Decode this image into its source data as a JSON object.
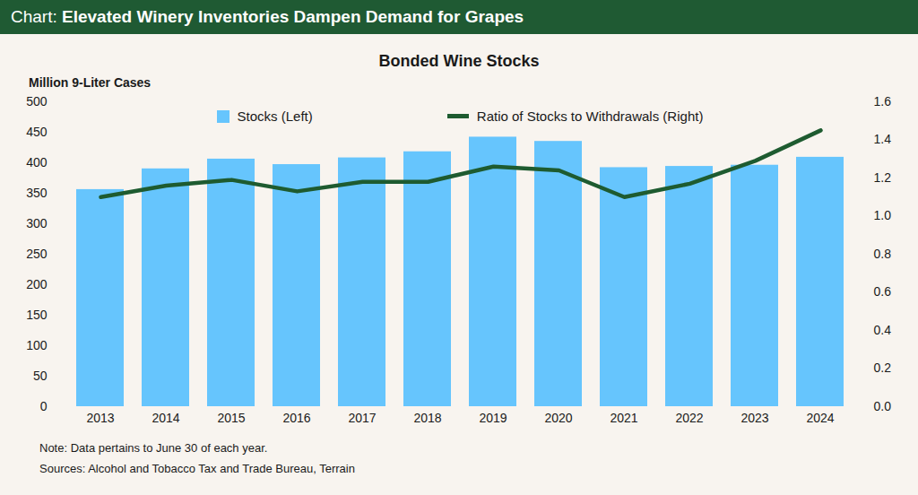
{
  "chart_data": {
    "type": "bar",
    "title": "Chart: Elevated Winery Inventories Dampen Demand for Grapes",
    "subtitle": "Bonded Wine Stocks",
    "ylabel": "Million 9-Liter Cases",
    "notes": [
      "Note: Data pertains to June 30 of each year.",
      "Sources: Alcohol and Tobacco Tax and Trade Bureau, Terrain"
    ],
    "categories": [
      "2013",
      "2014",
      "2015",
      "2016",
      "2017",
      "2018",
      "2019",
      "2020",
      "2021",
      "2022",
      "2023",
      "2024"
    ],
    "series": [
      {
        "name": "Stocks (Left)",
        "type": "bar",
        "color": "#66c5fd",
        "values": [
          356,
          390,
          406,
          397,
          408,
          418,
          442,
          435,
          392,
          394,
          396,
          409
        ]
      },
      {
        "name": "Ratio of Stocks to Withdrawals (Right)",
        "type": "line",
        "axis": "y2",
        "color": "#1e5b30",
        "values": [
          1.1,
          1.16,
          1.19,
          1.13,
          1.18,
          1.18,
          1.26,
          1.24,
          1.1,
          1.17,
          1.29,
          1.45
        ]
      }
    ],
    "ylim": [
      0,
      500
    ],
    "yticks": [
      0,
      50,
      100,
      150,
      200,
      250,
      300,
      350,
      400,
      450,
      500
    ],
    "y2lim": [
      0,
      1.6
    ],
    "y2ticks": [
      {
        "value": 0,
        "label": "0.0"
      },
      0.2,
      0.4,
      0.6,
      0.8,
      {
        "value": 1,
        "label": "1.0"
      },
      1.2,
      1.4,
      1.6
    ],
    "grid": false,
    "legend": "top"
  }
}
